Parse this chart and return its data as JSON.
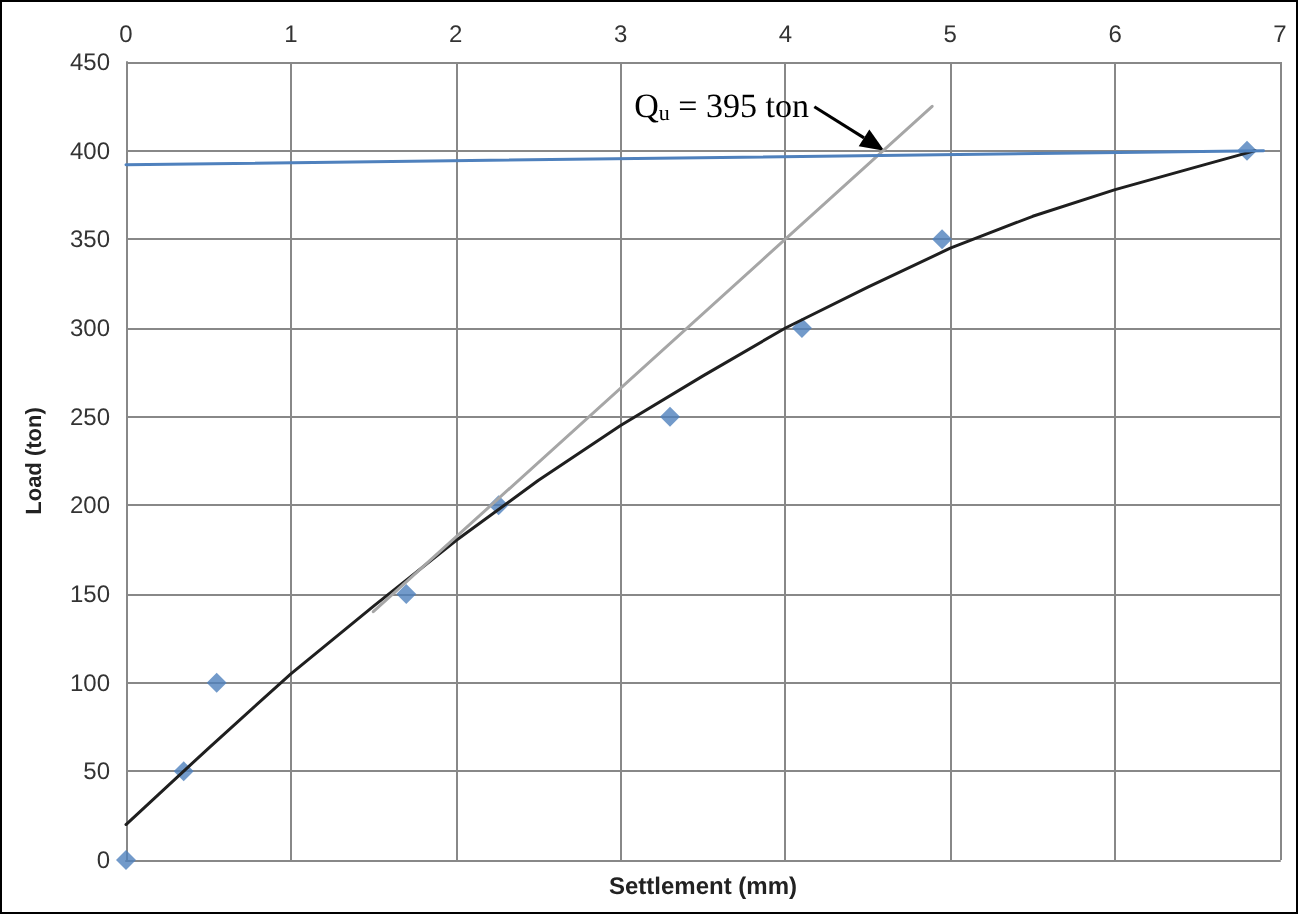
{
  "chart_data": {
    "type": "scatter",
    "xlabel": "Settlement (mm)",
    "ylabel": "Load (ton)",
    "xlim": [
      0,
      7
    ],
    "xticks": [
      0,
      1,
      2,
      3,
      4,
      5,
      6,
      7
    ],
    "ylim": [
      0,
      450
    ],
    "yticks": [
      0,
      50,
      100,
      150,
      200,
      250,
      300,
      350,
      400,
      450
    ],
    "grid": true,
    "marker": "diamond",
    "series": [
      {
        "type": "scatter",
        "color": "#4f81bd",
        "x": [
          0,
          0.35,
          0.55,
          1.7,
          2.26,
          3.3,
          4.1,
          4.95,
          6.8
        ],
        "values": [
          0,
          50,
          100,
          150,
          200,
          250,
          300,
          350,
          400
        ]
      },
      {
        "type": "line",
        "color": "#1f1f1f",
        "marker": "none",
        "x": [
          0,
          0.5,
          1,
          1.5,
          2,
          2.5,
          3,
          3.5,
          4,
          4.5,
          5,
          5.5,
          6,
          6.5,
          6.85
        ],
        "values": [
          20,
          63,
          105,
          143,
          180,
          214,
          245,
          273,
          300,
          323,
          345,
          363,
          378,
          391,
          400
        ]
      },
      {
        "type": "line",
        "color": "#a6a6a6",
        "marker": "none",
        "x": [
          1.5,
          4.89
        ],
        "values": [
          140,
          425
        ]
      },
      {
        "type": "line",
        "color": "#4f81bd",
        "marker": "none",
        "x": [
          0,
          6.9
        ],
        "values": [
          392,
          400
        ]
      }
    ],
    "annotations": [
      {
        "text": "Q$_{u}$ = 395 ton",
        "x": 4.6,
        "y": 400
      }
    ]
  }
}
